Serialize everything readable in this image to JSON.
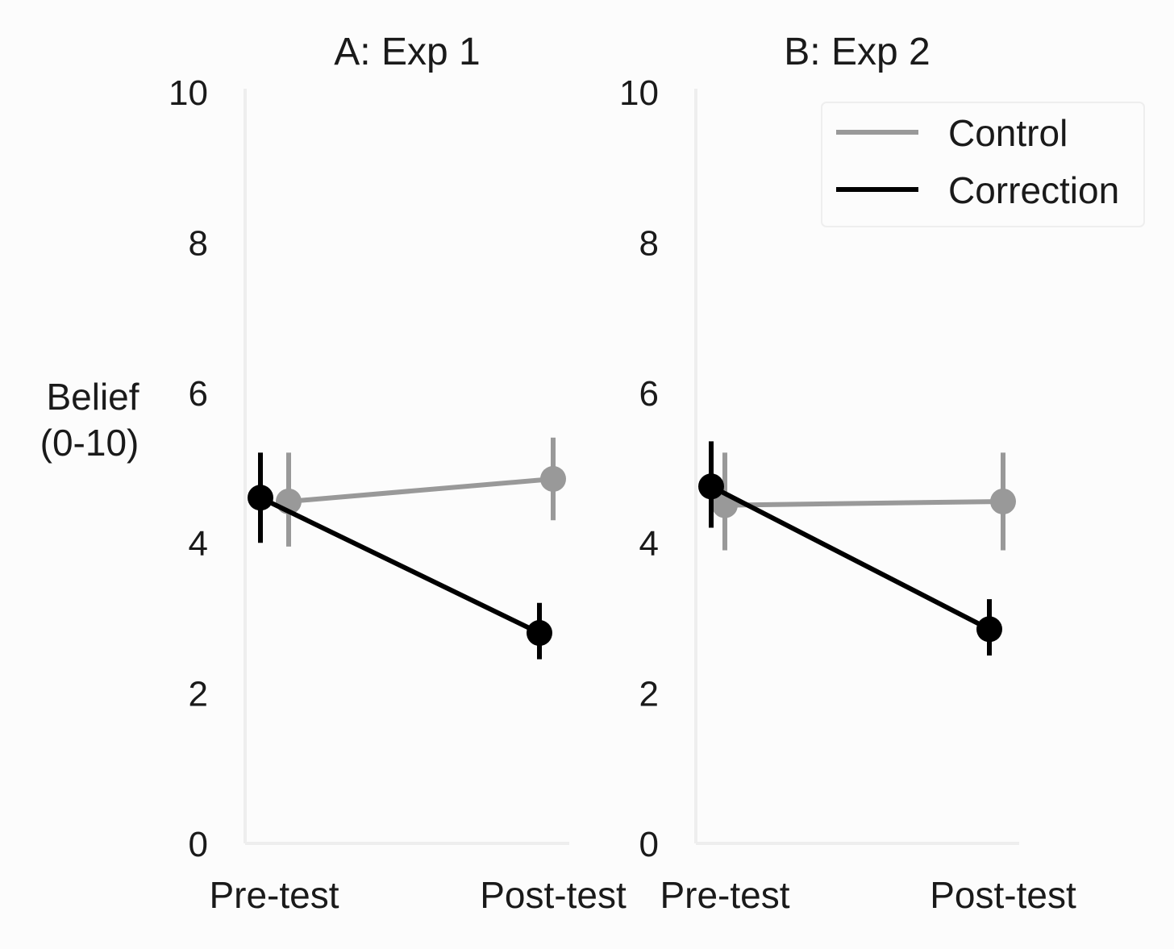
{
  "ylabel_lines": [
    "Belief",
    "(0-10)"
  ],
  "legend": {
    "entries": [
      {
        "label": "Control",
        "color": "#999999"
      },
      {
        "label": "Correction",
        "color": "#000000"
      }
    ],
    "placement": "top-right"
  },
  "chart_data": [
    {
      "type": "line",
      "title": "A: Exp 1",
      "categories": [
        "Pre-test",
        "Post-test"
      ],
      "ylim": [
        0,
        10
      ],
      "yticks": [
        0,
        2,
        4,
        6,
        8,
        10
      ],
      "grid": false,
      "series": [
        {
          "name": "Control",
          "color": "#999999",
          "values": [
            4.55,
            4.85
          ],
          "error_low": [
            3.95,
            4.3
          ],
          "error_high": [
            5.2,
            5.4
          ]
        },
        {
          "name": "Correction",
          "color": "#000000",
          "values": [
            4.6,
            2.8
          ],
          "error_low": [
            4.0,
            2.45
          ],
          "error_high": [
            5.2,
            3.2
          ]
        }
      ]
    },
    {
      "type": "line",
      "title": "B: Exp 2",
      "categories": [
        "Pre-test",
        "Post-test"
      ],
      "ylim": [
        0,
        10
      ],
      "yticks": [
        0,
        2,
        4,
        6,
        8,
        10
      ],
      "grid": false,
      "series": [
        {
          "name": "Control",
          "color": "#999999",
          "values": [
            4.5,
            4.55
          ],
          "error_low": [
            3.9,
            3.9
          ],
          "error_high": [
            5.2,
            5.2
          ]
        },
        {
          "name": "Correction",
          "color": "#000000",
          "values": [
            4.75,
            2.85
          ],
          "error_low": [
            4.2,
            2.5
          ],
          "error_high": [
            5.35,
            3.25
          ]
        }
      ]
    }
  ]
}
